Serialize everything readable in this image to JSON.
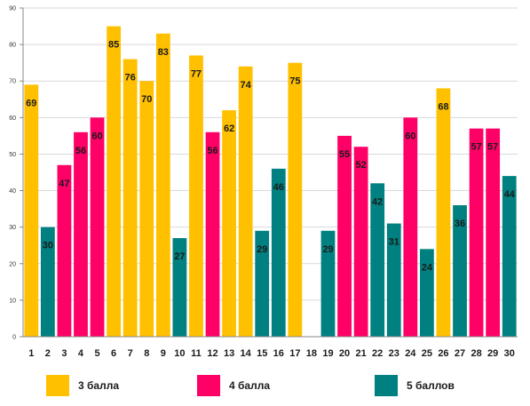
{
  "chart_data": {
    "type": "bar",
    "title": "",
    "xlabel": "",
    "ylabel": "",
    "ylim": [
      0,
      90
    ],
    "yticks": [
      "0",
      "10",
      "20",
      "30",
      "40",
      "50",
      "60",
      "70",
      "80",
      "90"
    ],
    "grid": true,
    "legend_position": "bottom",
    "categories": [
      "1",
      "2",
      "3",
      "4",
      "5",
      "6",
      "7",
      "8",
      "9",
      "10",
      "11",
      "12",
      "13",
      "14",
      "15",
      "16",
      "17",
      "18",
      "19",
      "20",
      "21",
      "22",
      "23",
      "24",
      "25",
      "26",
      "27",
      "28",
      "29",
      "30"
    ],
    "values": [
      69,
      30,
      47,
      56,
      60,
      85,
      76,
      70,
      83,
      27,
      77,
      56,
      62,
      74,
      29,
      46,
      75,
      null,
      29,
      55,
      52,
      42,
      31,
      60,
      24,
      68,
      36,
      57,
      57,
      44
    ],
    "grade": [
      "3 балла",
      "5 баллов",
      "4 балла",
      "4 балла",
      "4 балла",
      "3 балла",
      "3 балла",
      "3 балла",
      "3 балла",
      "5 баллов",
      "3 балла",
      "4 балла",
      "3 балла",
      "3 балла",
      "5 баллов",
      "5 баллов",
      "3 балла",
      null,
      "5 баллов",
      "4 балла",
      "4 балла",
      "5 баллов",
      "5 баллов",
      "4 балла",
      "5 баллов",
      "3 балла",
      "5 баллов",
      "4 балла",
      "4 балла",
      "5 баллов"
    ],
    "series": [
      {
        "name": "3 балла",
        "color": "#FFC000"
      },
      {
        "name": "4 балла",
        "color": "#FF0066"
      },
      {
        "name": "5 баллов",
        "color": "#008080"
      }
    ]
  },
  "legend": {
    "items": [
      {
        "label": "3 балла"
      },
      {
        "label": "4 балла"
      },
      {
        "label": "5 баллов"
      }
    ]
  }
}
